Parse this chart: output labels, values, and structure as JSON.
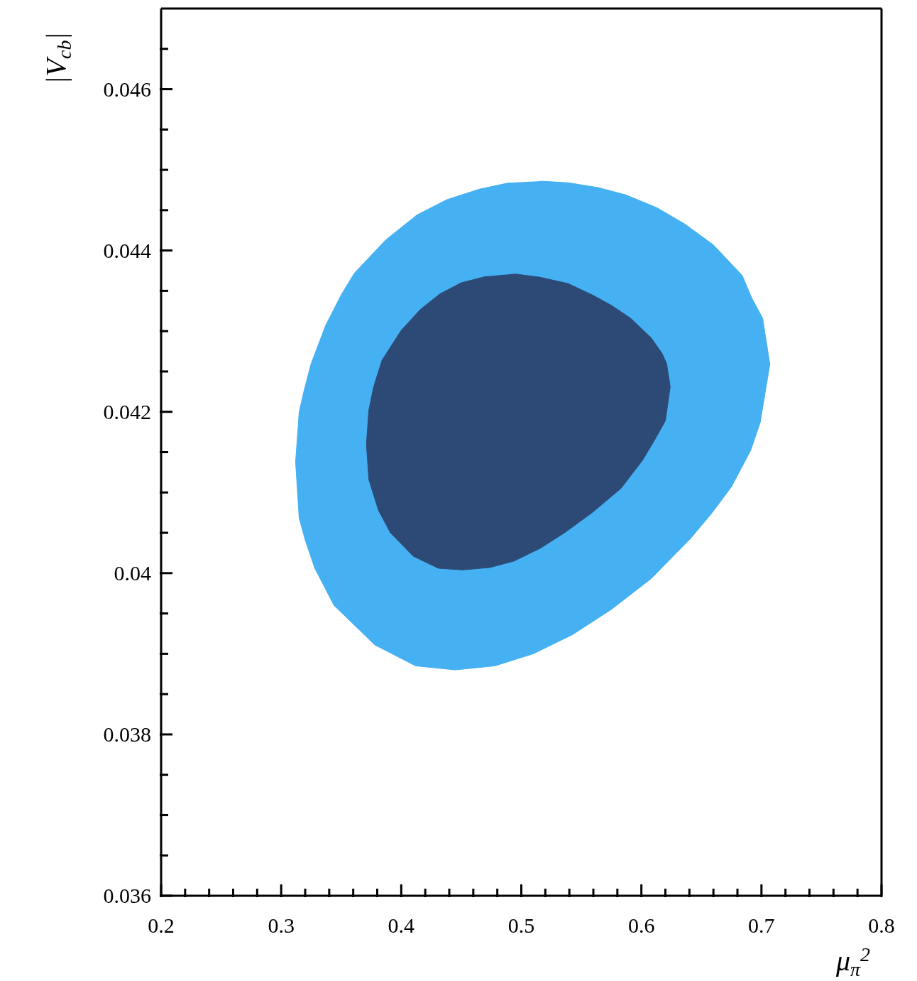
{
  "chart_data": {
    "type": "area",
    "xlabel": "μ$_{π}$$^{2}$",
    "ylabel": "|V$_{cb}$|",
    "xlim": [
      0.2,
      0.8
    ],
    "xticks": [
      0.2,
      {
        "value": 0.22,
        "label": null
      },
      {
        "value": 0.24,
        "label": null
      },
      {
        "value": 0.26,
        "label": null
      },
      {
        "value": 0.28,
        "label": null
      },
      0.3,
      {
        "value": 0.32,
        "label": null
      },
      {
        "value": 0.34,
        "label": null
      },
      {
        "value": 0.36,
        "label": null
      },
      {
        "value": 0.38,
        "label": null
      },
      0.4,
      {
        "value": 0.42,
        "label": null
      },
      {
        "value": 0.44,
        "label": null
      },
      {
        "value": 0.46,
        "label": null
      },
      {
        "value": 0.48,
        "label": null
      },
      0.5,
      {
        "value": 0.52,
        "label": null
      },
      {
        "value": 0.54,
        "label": null
      },
      {
        "value": 0.56,
        "label": null
      },
      {
        "value": 0.58,
        "label": null
      },
      0.6,
      {
        "value": 0.62,
        "label": null
      },
      {
        "value": 0.64,
        "label": null
      },
      {
        "value": 0.66,
        "label": null
      },
      {
        "value": 0.68,
        "label": null
      },
      0.7,
      {
        "value": 0.72,
        "label": null
      },
      {
        "value": 0.74,
        "label": null
      },
      {
        "value": 0.76,
        "label": null
      },
      {
        "value": 0.78,
        "label": null
      },
      0.8
    ],
    "ylim": [
      0.036,
      0.047
    ],
    "yticks": [
      0.036,
      {
        "value": 0.0365,
        "label": null
      },
      {
        "value": 0.037,
        "label": null
      },
      {
        "value": 0.0375,
        "label": null
      },
      0.038,
      {
        "value": 0.0385,
        "label": null
      },
      {
        "value": 0.039,
        "label": null
      },
      {
        "value": 0.0395,
        "label": null
      },
      0.04,
      {
        "value": 0.0405,
        "label": null
      },
      {
        "value": 0.041,
        "label": null
      },
      {
        "value": 0.0415,
        "label": null
      },
      0.042,
      {
        "value": 0.0425,
        "label": null
      },
      {
        "value": 0.043,
        "label": null
      },
      {
        "value": 0.0435,
        "label": null
      },
      0.044,
      {
        "value": 0.0445,
        "label": null
      },
      {
        "value": 0.045,
        "label": null
      },
      {
        "value": 0.0455,
        "label": null
      },
      0.046,
      {
        "value": 0.0465,
        "label": null
      }
    ],
    "series": [
      {
        "color": "#45b0f2",
        "x": [
          0.516,
          0.539,
          0.564,
          0.587,
          0.613,
          0.636,
          0.66,
          0.684,
          0.692,
          0.701,
          0.707,
          0.699,
          0.691,
          0.675,
          0.659,
          0.641,
          0.608,
          0.575,
          0.543,
          0.51,
          0.478,
          0.445,
          0.412,
          0.378,
          0.344,
          0.328,
          0.32,
          0.315,
          0.312,
          0.315,
          0.319,
          0.325,
          0.337,
          0.35,
          0.361,
          0.387,
          0.413,
          0.438,
          0.465,
          0.49
        ],
        "values": [
          0.04486,
          0.04484,
          0.04478,
          0.04469,
          0.04453,
          0.04433,
          0.04407,
          0.04369,
          0.04341,
          0.04316,
          0.04259,
          0.04187,
          0.04152,
          0.04107,
          0.04075,
          0.04043,
          0.03993,
          0.03955,
          0.03924,
          0.039,
          0.03885,
          0.0388,
          0.03885,
          0.03911,
          0.0396,
          0.04006,
          0.04041,
          0.04068,
          0.04138,
          0.042,
          0.04226,
          0.0426,
          0.04307,
          0.04345,
          0.04372,
          0.04413,
          0.04444,
          0.04463,
          0.04476,
          0.04484
        ]
      },
      {
        "color": "#2d4a77",
        "x": [
          0.494,
          0.515,
          0.539,
          0.559,
          0.575,
          0.591,
          0.608,
          0.617,
          0.621,
          0.624,
          0.62,
          0.611,
          0.601,
          0.583,
          0.559,
          0.536,
          0.516,
          0.494,
          0.474,
          0.451,
          0.431,
          0.41,
          0.391,
          0.381,
          0.373,
          0.371,
          0.373,
          0.377,
          0.384,
          0.4,
          0.416,
          0.432,
          0.45,
          0.471
        ],
        "values": [
          0.04371,
          0.04367,
          0.04359,
          0.04345,
          0.04332,
          0.04316,
          0.04292,
          0.04273,
          0.0426,
          0.04231,
          0.04189,
          0.04165,
          0.0414,
          0.04105,
          0.04075,
          0.0405,
          0.04031,
          0.04015,
          0.04007,
          0.04004,
          0.04006,
          0.04021,
          0.0405,
          0.04078,
          0.04116,
          0.0416,
          0.04202,
          0.04231,
          0.04264,
          0.04301,
          0.04327,
          0.04346,
          0.0436,
          0.04368
        ]
      }
    ]
  }
}
